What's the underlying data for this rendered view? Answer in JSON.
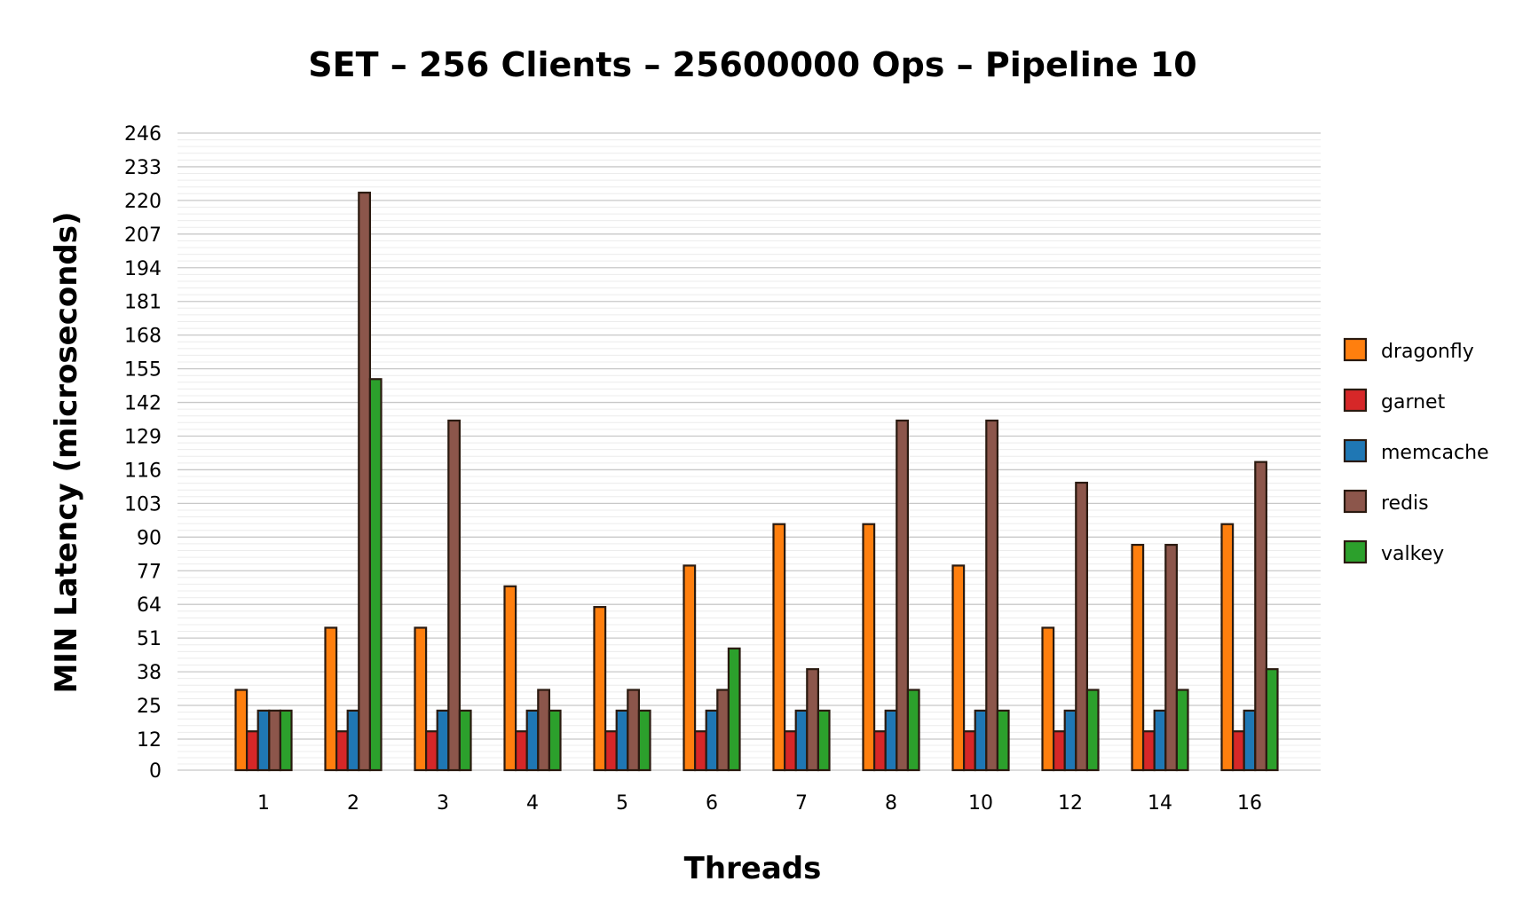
{
  "chart_data": {
    "type": "bar",
    "title": "SET – 256 Clients – 25600000 Ops – Pipeline 10",
    "xlabel": "Threads",
    "ylabel": "MIN Latency (microseconds)",
    "categories": [
      "1",
      "2",
      "3",
      "4",
      "5",
      "6",
      "7",
      "8",
      "10",
      "12",
      "14",
      "16"
    ],
    "yticks": [
      0,
      12,
      25,
      38,
      51,
      64,
      77,
      90,
      103,
      116,
      129,
      142,
      155,
      168,
      181,
      194,
      207,
      220,
      233,
      246
    ],
    "ylim": [
      0,
      246
    ],
    "grid": true,
    "legend_position": "right",
    "series": [
      {
        "name": "dragonfly",
        "color": "#ff7f0e",
        "values": [
          31,
          55,
          55,
          71,
          63,
          79,
          95,
          95,
          79,
          55,
          87,
          95
        ]
      },
      {
        "name": "garnet",
        "color": "#d62728",
        "values": [
          15,
          15,
          15,
          15,
          15,
          15,
          15,
          15,
          15,
          15,
          15,
          15
        ]
      },
      {
        "name": "memcache",
        "color": "#1f77b4",
        "values": [
          23,
          23,
          23,
          23,
          23,
          23,
          23,
          23,
          23,
          23,
          23,
          23
        ]
      },
      {
        "name": "redis",
        "color": "#8c564b",
        "values": [
          23,
          223,
          135,
          31,
          31,
          31,
          39,
          135,
          135,
          111,
          87,
          119
        ]
      },
      {
        "name": "valkey",
        "color": "#2ca02c",
        "values": [
          23,
          151,
          23,
          23,
          23,
          47,
          23,
          31,
          23,
          31,
          31,
          39
        ]
      }
    ]
  }
}
